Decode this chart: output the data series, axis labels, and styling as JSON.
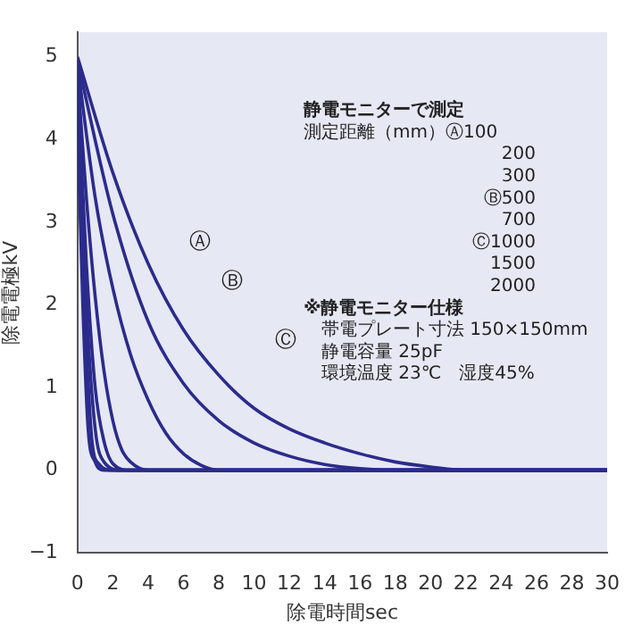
{
  "chart_data": {
    "type": "line",
    "xlabel": "除電時間sec",
    "ylabel": "除電電極kV",
    "xlim": [
      0,
      30
    ],
    "xticks": [
      0,
      2,
      4,
      6,
      8,
      10,
      12,
      14,
      16,
      18,
      20,
      22,
      24,
      26,
      28,
      30
    ],
    "ylim": [
      -1,
      5.3
    ],
    "yticks": [
      -1,
      0,
      1,
      2,
      3,
      4,
      5
    ],
    "grid": false,
    "legend": false,
    "marker": "none",
    "line_style": "solid",
    "series": [
      {
        "color": "#2b2b8c",
        "x": [
          0,
          0.3,
          0.6,
          1,
          1.5,
          30
        ],
        "values": [
          4.2,
          2,
          0.5,
          0.1,
          0,
          0
        ]
      },
      {
        "color": "#2b2b8c",
        "x": [
          0,
          0.4,
          0.8,
          1.2,
          2,
          30
        ],
        "values": [
          4.4,
          2,
          0.4,
          0.08,
          0,
          0
        ]
      },
      {
        "color": "#2b2b8c",
        "x": [
          0,
          0.5,
          1,
          1.5,
          2.5,
          30
        ],
        "values": [
          4.6,
          2,
          0.5,
          0.1,
          0,
          0
        ]
      },
      {
        "color": "#2b2b8c",
        "x": [
          0,
          0.5,
          1,
          1.5,
          2,
          3,
          30
        ],
        "values": [
          4.7,
          2.5,
          1,
          0.35,
          0.08,
          0,
          0
        ]
      },
      {
        "color": "#2b2b8c",
        "x": [
          0,
          0.5,
          1,
          1.5,
          2,
          2.5,
          3,
          4,
          30
        ],
        "values": [
          4.8,
          3.3,
          2.1,
          1.2,
          0.6,
          0.25,
          0.1,
          0,
          0
        ]
      },
      {
        "color": "#2b2b8c",
        "x": [
          0,
          1,
          2,
          3,
          4,
          5,
          6,
          7,
          8,
          30
        ],
        "values": [
          4.9,
          3.3,
          2.2,
          1.4,
          0.85,
          0.45,
          0.2,
          0.06,
          0,
          0
        ]
      },
      {
        "color": "#2b2b8c",
        "x": [
          0,
          2,
          4,
          6,
          8,
          10,
          12,
          14,
          16,
          18,
          30
        ],
        "values": [
          4.95,
          3.1,
          1.8,
          1.05,
          0.6,
          0.33,
          0.17,
          0.07,
          0.02,
          0,
          0
        ]
      },
      {
        "color": "#2b2b8c",
        "x": [
          0,
          2,
          4,
          6,
          8,
          10,
          12,
          14,
          16,
          18,
          20,
          22,
          30
        ],
        "values": [
          5,
          3.6,
          2.5,
          1.7,
          1.15,
          0.75,
          0.5,
          0.33,
          0.2,
          0.1,
          0.04,
          0,
          0
        ]
      }
    ],
    "annotations": [
      "Ⓐ",
      "Ⓑ",
      "Ⓒ",
      "静電モニターで測定",
      "測定距離（mm）Ⓐ100",
      "200",
      "300",
      "Ⓑ500",
      "700",
      "Ⓒ1000",
      "1500",
      "2000",
      "※静電モニター仕様",
      "帯電プレート寸法 150×150mm",
      "静電容量 25pF",
      "環境温度 23℃　湿度45%"
    ]
  }
}
